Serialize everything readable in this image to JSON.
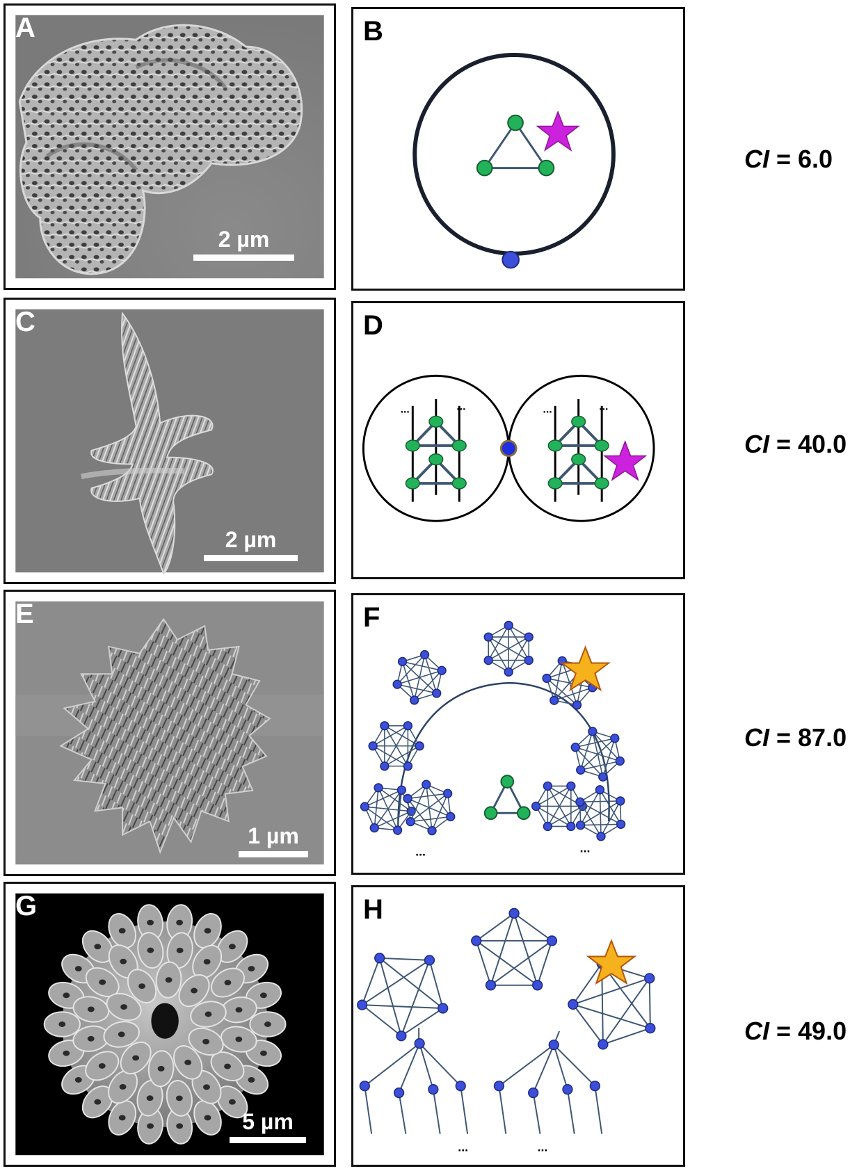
{
  "rows": [
    {
      "sem": {
        "label": "A",
        "scale_text": "2 µm"
      },
      "diagram": {
        "label": "B"
      },
      "ci": {
        "symbol": "CI",
        "eq": " = ",
        "value": "6.0"
      }
    },
    {
      "sem": {
        "label": "C",
        "scale_text": "2 µm"
      },
      "diagram": {
        "label": "D",
        "ellipsis": "..."
      },
      "ci": {
        "symbol": "CI",
        "eq": " = ",
        "value": "40.0"
      }
    },
    {
      "sem": {
        "label": "E",
        "scale_text": "1 µm"
      },
      "diagram": {
        "label": "F",
        "ellipsis": "..."
      },
      "ci": {
        "symbol": "CI",
        "eq": " = ",
        "value": "87.0"
      }
    },
    {
      "sem": {
        "label": "G",
        "scale_text": "5 µm"
      },
      "diagram": {
        "label": "H",
        "ellipsis": "..."
      },
      "ci": {
        "symbol": "CI",
        "eq": " = ",
        "value": "49.0"
      }
    }
  ],
  "colors": {
    "green_node": "#22b35a",
    "blue_node": "#3b4fd8",
    "edge": "#3d5673",
    "magenta_star": "#cc22dd",
    "orange_star": "#f5b21c"
  }
}
